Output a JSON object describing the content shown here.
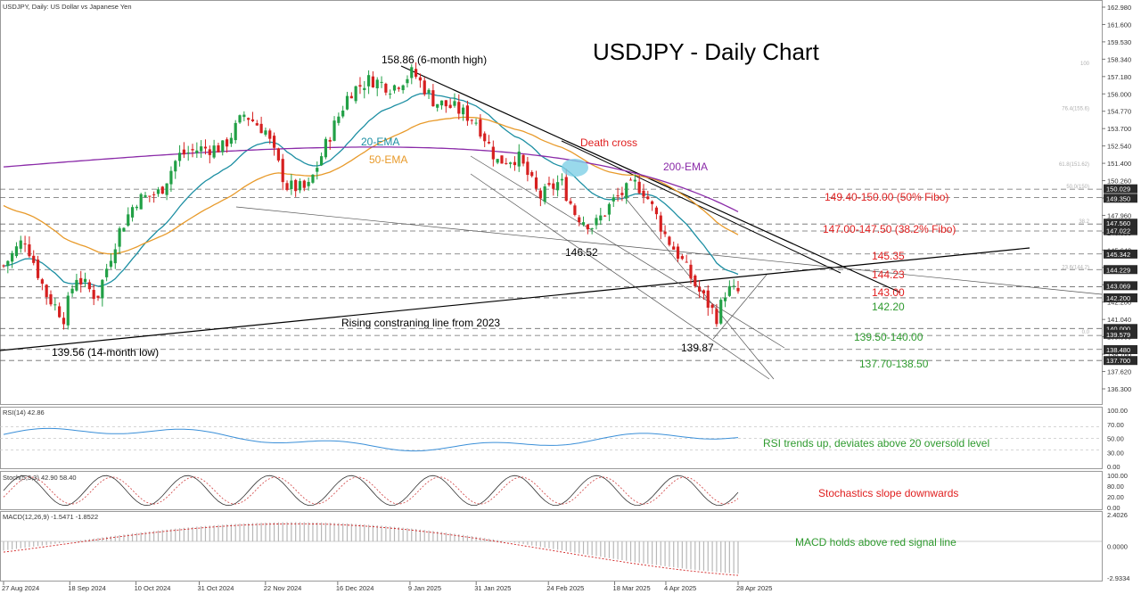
{
  "header": {
    "symbol_info": "USDJPY, Daily:  US Dollar vs Japanese Yen",
    "big_title": "USDJPY - Daily Chart"
  },
  "colors": {
    "bull": "#22a046",
    "bear": "#d62020",
    "ema20": "#1d8fa3",
    "ema50": "#e89a2a",
    "ema200": "#8a2aa8",
    "annot_red": "#e02020",
    "annot_green": "#2e9a2e",
    "grid": "#6a6a6a",
    "axis_text": "#333333"
  },
  "annotations": {
    "high_label": "158.86 (6-month high)",
    "low_label": "139.56 (14-month low)",
    "mid_low": "146.52",
    "recent_low": "139.87",
    "death_cross": "Death cross",
    "ema20_label": "20-EMA",
    "ema50_label": "50-EMA",
    "ema200_label": "200-EMA",
    "rising_line": "Rising constraning line from 2023",
    "zone_150": "149.40-150.00 (50% Fibo)",
    "zone_147": "147.00-147.50 (38.2% Fibo)",
    "lvl_145": "145.35",
    "lvl_144": "144.23",
    "lvl_143": "143.00",
    "lvl_142": "142.20",
    "zone_140": "139.50-140.00",
    "zone_138": "137.70-138.50",
    "fibo_labels": [
      "100",
      "76.4(155.6)",
      "61.8(151.62)",
      "50.0(150)",
      "38.2",
      "23.6(144.2)",
      "0.0"
    ]
  },
  "price_axis": {
    "ticks": [
      "162.980",
      "161.600",
      "159.530",
      "158.340",
      "157.180",
      "156.000",
      "154.770",
      "153.700",
      "152.540",
      "151.400",
      "150.260",
      "149.110",
      "147.960",
      "146.830",
      "145.640",
      "144.510",
      "143.350",
      "142.200",
      "141.040",
      "139.900",
      "138.760",
      "137.620",
      "136.300"
    ],
    "badges": [
      "150.029",
      "149.350",
      "147.560",
      "147.022",
      "145.342",
      "144.229",
      "143.069",
      "142.200",
      "140.000",
      "139.579",
      "138.480",
      "137.700"
    ]
  },
  "indicators": {
    "rsi": {
      "label": "RSI(14) 42.86",
      "ticks": [
        "100.00",
        "70.00",
        "50.00",
        "30.00",
        "0.00"
      ],
      "comment": "RSI trends up, deviates above 20 oversold level"
    },
    "stoch": {
      "label": "Stoch(5,3,3) 42.90 58.40",
      "ticks": [
        "100.00",
        "80.00",
        "20.00",
        "0.00"
      ],
      "comment": "Stochastics slope downwards"
    },
    "macd": {
      "label": "MACD(12,26,9) -1.5471 -1.8522",
      "ticks": [
        "2.4026",
        "0.0000",
        "-2.9334"
      ],
      "comment": "MACD holds above red signal line"
    }
  },
  "date_axis": [
    "27 Aug 2024",
    "18 Sep 2024",
    "10 Oct 2024",
    "31 Oct 2024",
    "22 Nov 2024",
    "16 Dec 2024",
    "9 Jan 2025",
    "31 Jan 2025",
    "24 Feb 2025",
    "18 Mar 2025",
    "4 Apr 2025",
    "28 Apr 2025"
  ],
  "chart_data": {
    "type": "candlestick",
    "title": "USDJPY - Daily Chart",
    "x_range": [
      "27 Aug 2024",
      "28 Apr 2025"
    ],
    "ylim": [
      135.6,
      163.2
    ],
    "close_path": [
      [
        "27 Aug 2024",
        144.5
      ],
      [
        "3 Sep 2024",
        146.5
      ],
      [
        "10 Sep 2024",
        142.5
      ],
      [
        "16 Sep 2024",
        140.8
      ],
      [
        "20 Sep 2024",
        143.8
      ],
      [
        "27 Sep 2024",
        142.2
      ],
      [
        "4 Oct 2024",
        146.8
      ],
      [
        "10 Oct 2024",
        149.2
      ],
      [
        "18 Oct 2024",
        149.8
      ],
      [
        "24 Oct 2024",
        152.4
      ],
      [
        "31 Oct 2024",
        152.9
      ],
      [
        "8 Nov 2024",
        153.0
      ],
      [
        "15 Nov 2024",
        155.4
      ],
      [
        "22 Nov 2024",
        154.2
      ],
      [
        "29 Nov 2024",
        150.2
      ],
      [
        "6 Dec 2024",
        150.0
      ],
      [
        "13 Dec 2024",
        153.7
      ],
      [
        "20 Dec 2024",
        157.0
      ],
      [
        "27 Dec 2024",
        157.9
      ],
      [
        "3 Jan 2025",
        157.3
      ],
      [
        "10 Jan 2025",
        158.4
      ],
      [
        "17 Jan 2025",
        156.3
      ],
      [
        "24 Jan 2025",
        155.8
      ],
      [
        "31 Jan 2025",
        154.9
      ],
      [
        "7 Feb 2025",
        152.0
      ],
      [
        "14 Feb 2025",
        152.3
      ],
      [
        "21 Feb 2025",
        149.4
      ],
      [
        "28 Feb 2025",
        150.6
      ],
      [
        "5 Mar 2025",
        148.2
      ],
      [
        "11 Mar 2025",
        147.3
      ],
      [
        "18 Mar 2025",
        149.3
      ],
      [
        "25 Mar 2025",
        150.4
      ],
      [
        "28 Mar 2025",
        149.8
      ],
      [
        "4 Apr 2025",
        146.6
      ],
      [
        "9 Apr 2025",
        145.0
      ],
      [
        "14 Apr 2025",
        143.0
      ],
      [
        "21 Apr 2025",
        140.8
      ],
      [
        "24 Apr 2025",
        142.8
      ],
      [
        "28 Apr 2025",
        142.6
      ]
    ],
    "key_levels": [
      150.0,
      149.4,
      147.5,
      147.0,
      145.35,
      144.23,
      143.0,
      142.2,
      140.0,
      139.5,
      138.5,
      137.7
    ],
    "series": [
      {
        "name": "20-EMA"
      },
      {
        "name": "50-EMA"
      },
      {
        "name": "200-EMA"
      }
    ]
  }
}
